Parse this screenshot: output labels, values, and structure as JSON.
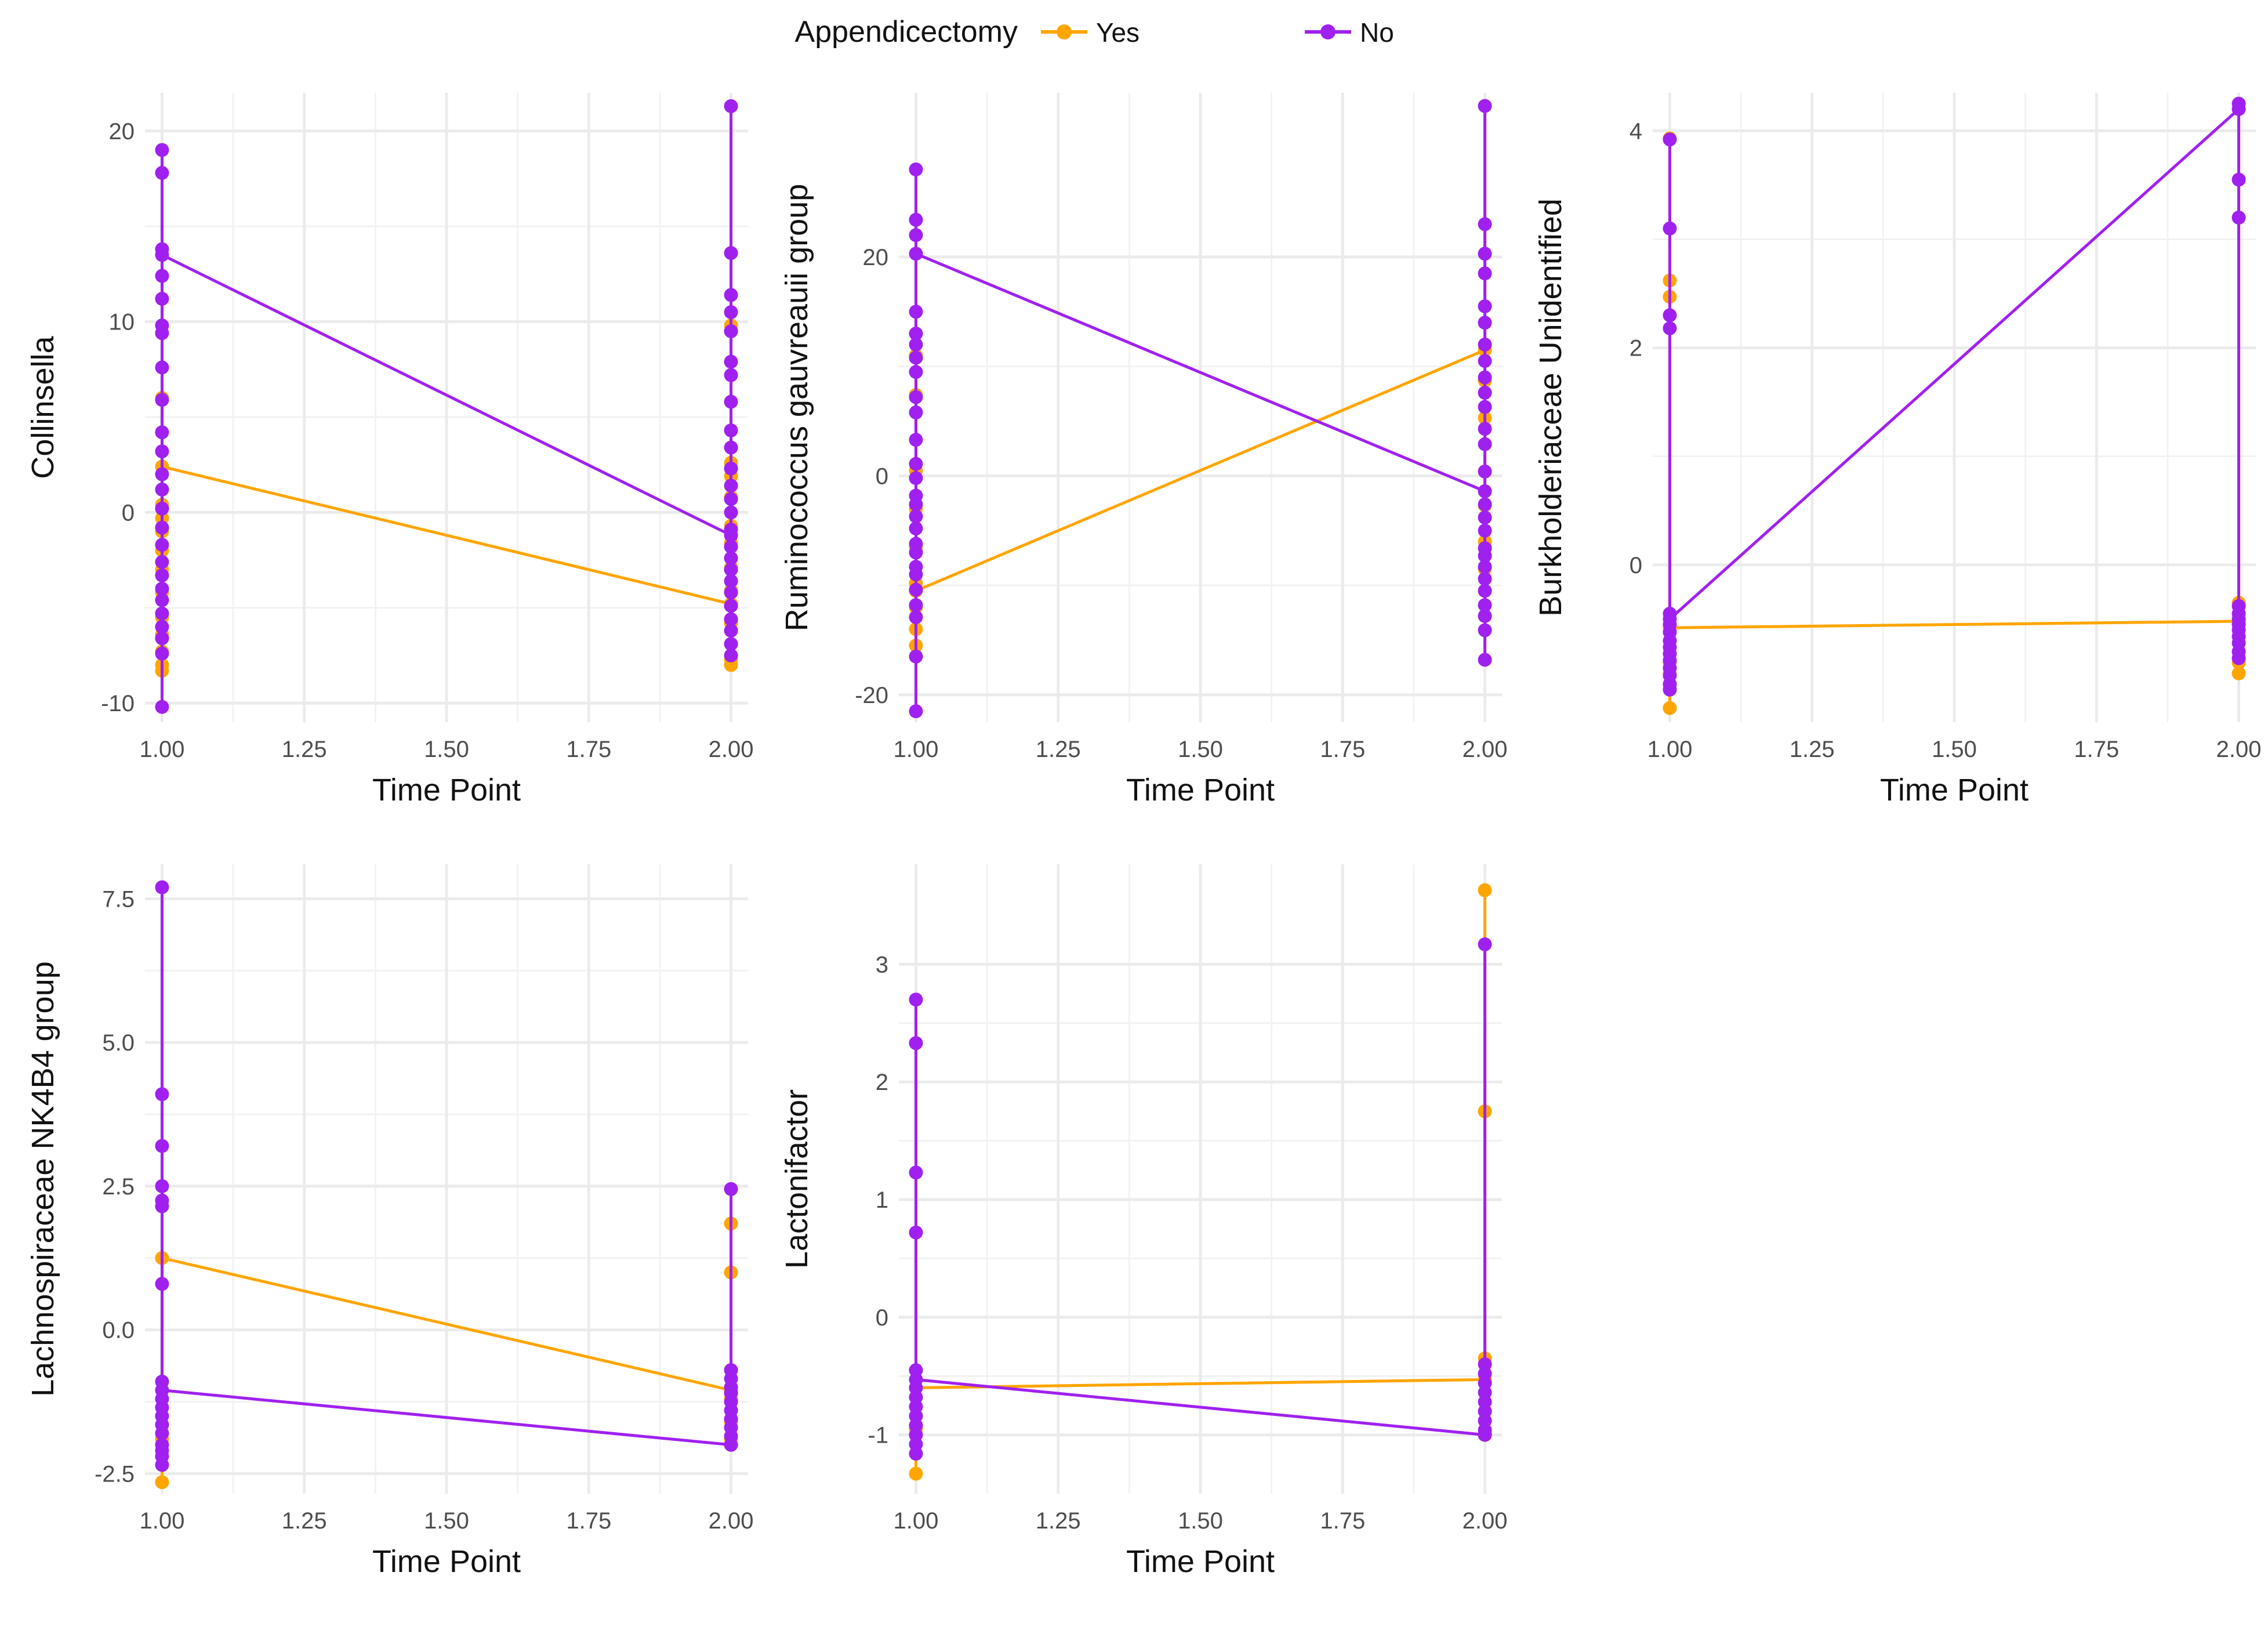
{
  "legend": {
    "title": "Appendicectomy",
    "items": [
      {
        "label": "Yes",
        "color": "#FFA500"
      },
      {
        "label": "No",
        "color": "#A020F0"
      }
    ]
  },
  "chart_data": [
    {
      "type": "line",
      "xlabel": "Time Point",
      "ylabel": "Collinsella",
      "xlim": [
        0.97,
        2.03
      ],
      "ylim": [
        -11,
        22
      ],
      "xticks": [
        1.0,
        1.25,
        1.5,
        1.75,
        2.0
      ],
      "xtick_labels": [
        "1.00",
        "1.25",
        "1.50",
        "1.75",
        "2.00"
      ],
      "yticks": [
        -10,
        0,
        10,
        20
      ],
      "ytick_labels": [
        "-10",
        "0",
        "10",
        "20"
      ],
      "series": [
        {
          "name": "Yes",
          "color": "#FFA500",
          "mean": [
            2.4,
            -4.8
          ],
          "points_t1": [
            6.0,
            2.4,
            0.4,
            -0.3,
            -1.0,
            -2.0,
            -3.0,
            -4.2,
            -5.5,
            -6.4,
            -7.3,
            -8.0,
            -8.3
          ],
          "points_t2": [
            9.8,
            2.6,
            1.9,
            0.8,
            -0.7,
            -1.6,
            -2.9,
            -4.1,
            -4.8,
            -5.8,
            -6.9,
            -7.7,
            -8.0
          ]
        },
        {
          "name": "No",
          "color": "#A020F0",
          "mean": [
            13.5,
            -1.2
          ],
          "points_t1": [
            19.0,
            17.8,
            13.8,
            13.5,
            12.4,
            11.2,
            9.8,
            9.4,
            7.6,
            5.9,
            4.2,
            3.2,
            2.0,
            1.2,
            0.2,
            -0.8,
            -1.7,
            -2.6,
            -3.3,
            -4.0,
            -4.6,
            -5.3,
            -6.0,
            -6.6,
            -7.4,
            -10.2
          ],
          "points_t2": [
            21.3,
            13.6,
            11.4,
            10.5,
            9.5,
            7.9,
            7.2,
            5.8,
            4.3,
            3.4,
            2.3,
            1.4,
            0.7,
            0.0,
            -0.9,
            -1.2,
            -1.8,
            -2.4,
            -3.0,
            -3.6,
            -4.2,
            -4.9,
            -5.6,
            -6.2,
            -6.9,
            -7.5
          ]
        }
      ]
    },
    {
      "type": "line",
      "xlabel": "Time Point",
      "ylabel": "Ruminococcus gauvreauii group",
      "xlim": [
        0.97,
        2.03
      ],
      "ylim": [
        -22.5,
        35
      ],
      "xticks": [
        1.0,
        1.25,
        1.5,
        1.75,
        2.0
      ],
      "xtick_labels": [
        "1.00",
        "1.25",
        "1.50",
        "1.75",
        "2.00"
      ],
      "yticks": [
        -20,
        0,
        20
      ],
      "ytick_labels": [
        "-20",
        "0",
        "20"
      ],
      "series": [
        {
          "name": "Yes",
          "color": "#FFA500",
          "mean": [
            -10.5,
            11.5
          ],
          "points_t1": [
            11.0,
            7.4,
            0.5,
            -3.0,
            -6.5,
            -9.8,
            -10.5,
            -12.0,
            -14.0,
            -15.5,
            -16.5
          ],
          "points_t2": [
            11.5,
            8.7,
            5.3,
            0.4,
            -1.4,
            -2.7,
            -6.0,
            -8.5,
            -10.5,
            -12.8
          ]
        },
        {
          "name": "No",
          "color": "#A020F0",
          "mean": [
            20.3,
            -1.4
          ],
          "points_t1": [
            28.0,
            23.4,
            22.0,
            20.3,
            15.0,
            13.0,
            12.0,
            10.8,
            9.5,
            7.2,
            5.8,
            3.3,
            1.1,
            -0.2,
            -1.8,
            -2.6,
            -3.7,
            -4.8,
            -6.2,
            -7.0,
            -8.3,
            -9.0,
            -10.4,
            -11.8,
            -12.9,
            -16.5,
            -21.5
          ],
          "points_t2": [
            33.8,
            23.0,
            20.3,
            18.5,
            15.5,
            14.0,
            12.0,
            10.5,
            9.0,
            7.6,
            6.3,
            4.3,
            2.9,
            0.4,
            -1.4,
            -2.6,
            -3.8,
            -5.0,
            -6.6,
            -7.3,
            -8.3,
            -9.4,
            -10.5,
            -11.8,
            -12.8,
            -14.1,
            -16.8
          ]
        }
      ]
    },
    {
      "type": "line",
      "xlabel": "Time Point",
      "ylabel": "Burkholderiaceae Unidentified",
      "xlim": [
        0.97,
        2.03
      ],
      "ylim": [
        -1.45,
        4.35
      ],
      "xticks": [
        1.0,
        1.25,
        1.5,
        1.75,
        2.0
      ],
      "xtick_labels": [
        "1.00",
        "1.25",
        "1.50",
        "1.75",
        "2.00"
      ],
      "yticks": [
        0,
        2,
        4
      ],
      "ytick_labels": [
        "0",
        "2",
        "4"
      ],
      "series": [
        {
          "name": "Yes",
          "color": "#FFA500",
          "mean": [
            -0.58,
            -0.52
          ],
          "points_t1": [
            3.93,
            2.62,
            2.47,
            -0.58,
            -0.9,
            -1.0,
            -1.1,
            -1.32
          ],
          "points_t2": [
            -0.35,
            -0.52,
            -0.8,
            -0.9,
            -1.0
          ]
        },
        {
          "name": "No",
          "color": "#A020F0",
          "mean": [
            -0.5,
            4.2
          ],
          "points_t1": [
            3.92,
            3.1,
            2.3,
            2.18,
            -0.45,
            -0.5,
            -0.55,
            -0.62,
            -0.7,
            -0.76,
            -0.82,
            -0.88,
            -0.95,
            -1.02,
            -1.1,
            -1.15
          ],
          "points_t2": [
            4.25,
            4.2,
            3.55,
            3.2,
            -0.38,
            -0.45,
            -0.5,
            -0.55,
            -0.6,
            -0.66,
            -0.72,
            -0.8,
            -0.86
          ]
        }
      ]
    },
    {
      "type": "line",
      "xlabel": "Time Point",
      "ylabel": "Lachnospiraceae NK4B4 group",
      "xlim": [
        0.97,
        2.03
      ],
      "ylim": [
        -2.85,
        8.1
      ],
      "xticks": [
        1.0,
        1.25,
        1.5,
        1.75,
        2.0
      ],
      "xtick_labels": [
        "1.00",
        "1.25",
        "1.50",
        "1.75",
        "2.00"
      ],
      "yticks": [
        -2.5,
        0.0,
        2.5,
        5.0,
        7.5
      ],
      "ytick_labels": [
        "-2.5",
        "0.0",
        "2.5",
        "5.0",
        "7.5"
      ],
      "series": [
        {
          "name": "Yes",
          "color": "#FFA500",
          "mean": [
            1.25,
            -1.05
          ],
          "points_t1": [
            1.25,
            -1.9,
            -2.2,
            -2.65
          ],
          "points_t2": [
            1.85,
            1.0,
            -1.05,
            -1.2,
            -1.6,
            -1.9,
            -2.0
          ]
        },
        {
          "name": "No",
          "color": "#A020F0",
          "mean": [
            -1.05,
            -2.0
          ],
          "points_t1": [
            7.7,
            4.1,
            3.2,
            2.5,
            2.25,
            2.15,
            0.8,
            -0.9,
            -1.05,
            -1.2,
            -1.35,
            -1.5,
            -1.65,
            -1.8,
            -2.0,
            -2.1,
            -2.2,
            -2.35
          ],
          "points_t2": [
            2.45,
            -0.7,
            -0.85,
            -1.0,
            -1.1,
            -1.25,
            -1.4,
            -1.55,
            -1.7,
            -1.85,
            -2.0
          ]
        }
      ]
    },
    {
      "type": "line",
      "xlabel": "Time Point",
      "ylabel": "Lactonifactor",
      "xlim": [
        0.97,
        2.03
      ],
      "ylim": [
        -1.5,
        3.85
      ],
      "xticks": [
        1.0,
        1.25,
        1.5,
        1.75,
        2.0
      ],
      "xtick_labels": [
        "1.00",
        "1.25",
        "1.50",
        "1.75",
        "2.00"
      ],
      "yticks": [
        -1,
        0,
        1,
        2,
        3
      ],
      "ytick_labels": [
        "-1",
        "0",
        "1",
        "2",
        "3"
      ],
      "series": [
        {
          "name": "Yes",
          "color": "#FFA500",
          "mean": [
            -0.6,
            -0.53
          ],
          "points_t1": [
            -0.6,
            -0.95,
            -1.33
          ],
          "points_t2": [
            3.63,
            1.75,
            -0.35,
            -0.53,
            -0.8,
            -1.0
          ]
        },
        {
          "name": "No",
          "color": "#A020F0",
          "mean": [
            -0.53,
            -1.0
          ],
          "points_t1": [
            2.7,
            2.33,
            1.23,
            0.72,
            -0.45,
            -0.53,
            -0.6,
            -0.68,
            -0.76,
            -0.84,
            -0.92,
            -1.0,
            -1.08,
            -1.16
          ],
          "points_t2": [
            3.17,
            -0.4,
            -0.48,
            -0.56,
            -0.64,
            -0.72,
            -0.8,
            -0.88,
            -0.96,
            -1.0
          ]
        }
      ]
    }
  ]
}
